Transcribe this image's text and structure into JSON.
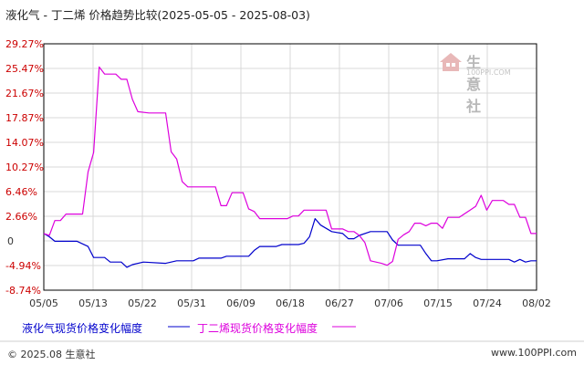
{
  "title": "液化气 - 丁二烯 价格趋势比较(2025-05-05 - 2025-08-03)",
  "legend": {
    "series1_label": "液化气现货价格变化幅度",
    "series2_label": "丁二烯现货价格变化幅度"
  },
  "footer": {
    "left": "© 2025.08 生意社",
    "right": "www.100PPI.com"
  },
  "watermark": {
    "main": "生意社",
    "sub": "100PPI.COM"
  },
  "colors": {
    "series1": "#0000cc",
    "series2": "#dd00dd",
    "positive_tick": "#cc0000",
    "negative_tick": "#cc0000",
    "grid": "#d9d9d9"
  },
  "chart_data": {
    "type": "line",
    "title": "液化气 - 丁二烯 价格趋势比较(2025-05-05 - 2025-08-03)",
    "x_tick_labels": [
      "05/05",
      "05/13",
      "05/22",
      "05/31",
      "06/09",
      "06/18",
      "06/27",
      "07/06",
      "07/15",
      "07/24",
      "08/02"
    ],
    "x_range": [
      "2025-05-05",
      "2025-08-02"
    ],
    "y_tick_labels": [
      "29.27%",
      "25.47%",
      "21.67%",
      "17.87%",
      "14.07%",
      "10.27%",
      "6.46%",
      "2.66%",
      "0",
      "-4.94%",
      "-8.74%"
    ],
    "ylim": [
      -8.74,
      29.27
    ],
    "grid": true,
    "legend_position": "bottom",
    "series": [
      {
        "name": "液化气现货价格变化幅度",
        "points": [
          [
            "2025-05-05",
            0
          ],
          [
            "2025-05-06",
            -0.5
          ],
          [
            "2025-05-07",
            -1.2
          ],
          [
            "2025-05-11",
            -1.2
          ],
          [
            "2025-05-13",
            -2.0
          ],
          [
            "2025-05-14",
            -3.7
          ],
          [
            "2025-05-16",
            -3.7
          ],
          [
            "2025-05-17",
            -4.4
          ],
          [
            "2025-05-19",
            -4.4
          ],
          [
            "2025-05-20",
            -5.2
          ],
          [
            "2025-05-21",
            -4.8
          ],
          [
            "2025-05-23",
            -4.4
          ],
          [
            "2025-05-27",
            -4.6
          ],
          [
            "2025-05-29",
            -4.2
          ],
          [
            "2025-06-01",
            -4.2
          ],
          [
            "2025-06-02",
            -3.8
          ],
          [
            "2025-06-06",
            -3.8
          ],
          [
            "2025-06-07",
            -3.5
          ],
          [
            "2025-06-11",
            -3.5
          ],
          [
            "2025-06-12",
            -2.6
          ],
          [
            "2025-06-13",
            -2.0
          ],
          [
            "2025-06-16",
            -2.0
          ],
          [
            "2025-06-17",
            -1.7
          ],
          [
            "2025-06-20",
            -1.7
          ],
          [
            "2025-06-21",
            -1.5
          ],
          [
            "2025-06-22",
            -0.5
          ],
          [
            "2025-06-23",
            2.3
          ],
          [
            "2025-06-24",
            1.3
          ],
          [
            "2025-06-26",
            0.3
          ],
          [
            "2025-06-28",
            0.0
          ],
          [
            "2025-06-29",
            -0.8
          ],
          [
            "2025-06-30",
            -0.8
          ],
          [
            "2025-07-01",
            -0.3
          ],
          [
            "2025-07-03",
            0.3
          ],
          [
            "2025-07-06",
            0.3
          ],
          [
            "2025-07-07",
            -1.0
          ],
          [
            "2025-07-08",
            -1.8
          ],
          [
            "2025-07-12",
            -1.8
          ],
          [
            "2025-07-13",
            -3.1
          ],
          [
            "2025-07-14",
            -4.2
          ],
          [
            "2025-07-15",
            -4.2
          ],
          [
            "2025-07-17",
            -3.9
          ],
          [
            "2025-07-20",
            -3.9
          ],
          [
            "2025-07-21",
            -3.1
          ],
          [
            "2025-07-22",
            -3.7
          ],
          [
            "2025-07-23",
            -4.0
          ],
          [
            "2025-07-28",
            -4.0
          ],
          [
            "2025-07-29",
            -4.4
          ],
          [
            "2025-07-30",
            -4.0
          ],
          [
            "2025-07-31",
            -4.4
          ],
          [
            "2025-08-01",
            -4.2
          ],
          [
            "2025-08-02",
            -4.2
          ]
        ]
      },
      {
        "name": "丁二烯现货价格变化幅度",
        "points": [
          [
            "2025-05-05",
            0
          ],
          [
            "2025-05-06",
            -0.3
          ],
          [
            "2025-05-07",
            2.0
          ],
          [
            "2025-05-08",
            2.0
          ],
          [
            "2025-05-09",
            3.0
          ],
          [
            "2025-05-12",
            3.0
          ],
          [
            "2025-05-13",
            9.5
          ],
          [
            "2025-05-14",
            12.5
          ],
          [
            "2025-05-15",
            25.7
          ],
          [
            "2025-05-16",
            24.6
          ],
          [
            "2025-05-18",
            24.6
          ],
          [
            "2025-05-19",
            23.8
          ],
          [
            "2025-05-20",
            23.8
          ],
          [
            "2025-05-21",
            20.7
          ],
          [
            "2025-05-22",
            18.8
          ],
          [
            "2025-05-24",
            18.6
          ],
          [
            "2025-05-27",
            18.6
          ],
          [
            "2025-05-28",
            12.6
          ],
          [
            "2025-05-29",
            11.5
          ],
          [
            "2025-05-30",
            8.0
          ],
          [
            "2025-05-31",
            7.2
          ],
          [
            "2025-06-05",
            7.2
          ],
          [
            "2025-06-06",
            4.3
          ],
          [
            "2025-06-07",
            4.3
          ],
          [
            "2025-06-08",
            6.3
          ],
          [
            "2025-06-10",
            6.3
          ],
          [
            "2025-06-11",
            3.8
          ],
          [
            "2025-06-12",
            3.4
          ],
          [
            "2025-06-13",
            2.3
          ],
          [
            "2025-06-18",
            2.3
          ],
          [
            "2025-06-19",
            2.7
          ],
          [
            "2025-06-20",
            2.7
          ],
          [
            "2025-06-21",
            3.6
          ],
          [
            "2025-06-25",
            3.6
          ],
          [
            "2025-06-26",
            0.7
          ],
          [
            "2025-06-28",
            0.7
          ],
          [
            "2025-06-29",
            0.3
          ],
          [
            "2025-06-30",
            0.3
          ],
          [
            "2025-07-01",
            -0.3
          ],
          [
            "2025-07-02",
            -1.4
          ],
          [
            "2025-07-03",
            -4.2
          ],
          [
            "2025-07-05",
            -4.6
          ],
          [
            "2025-07-06",
            -4.9
          ],
          [
            "2025-07-07",
            -4.3
          ],
          [
            "2025-07-08",
            -0.9
          ],
          [
            "2025-07-09",
            -0.2
          ],
          [
            "2025-07-10",
            0.3
          ],
          [
            "2025-07-11",
            1.6
          ],
          [
            "2025-07-12",
            1.6
          ],
          [
            "2025-07-13",
            1.2
          ],
          [
            "2025-07-14",
            1.6
          ],
          [
            "2025-07-15",
            1.6
          ],
          [
            "2025-07-16",
            0.8
          ],
          [
            "2025-07-17",
            2.5
          ],
          [
            "2025-07-19",
            2.5
          ],
          [
            "2025-07-21",
            3.6
          ],
          [
            "2025-07-22",
            4.2
          ],
          [
            "2025-07-23",
            5.9
          ],
          [
            "2025-07-24",
            3.6
          ],
          [
            "2025-07-25",
            5.1
          ],
          [
            "2025-07-27",
            5.1
          ],
          [
            "2025-07-28",
            4.5
          ],
          [
            "2025-07-29",
            4.5
          ],
          [
            "2025-07-30",
            2.5
          ],
          [
            "2025-07-31",
            2.5
          ],
          [
            "2025-08-01",
            0
          ],
          [
            "2025-08-02",
            0
          ]
        ]
      }
    ]
  }
}
